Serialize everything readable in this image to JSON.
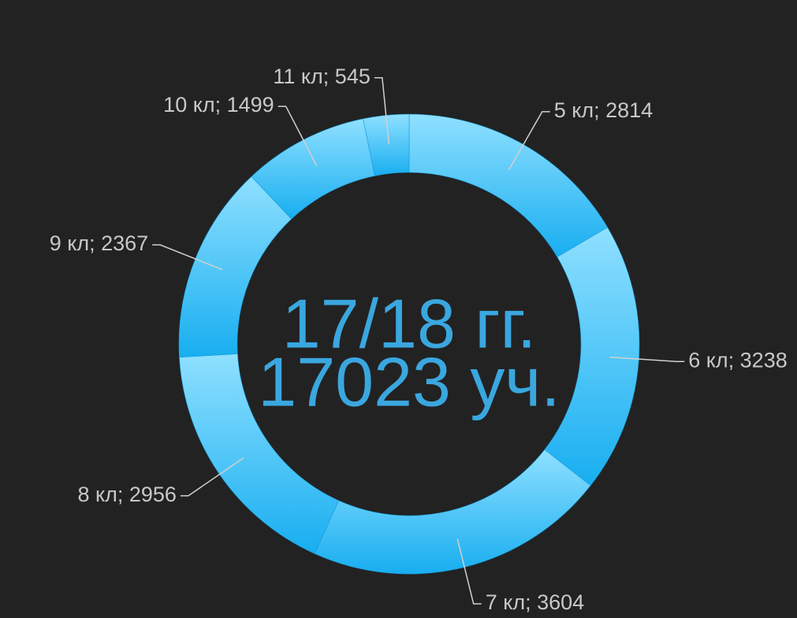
{
  "chart_data": {
    "type": "donut",
    "values": [
      2814,
      3238,
      3604,
      2956,
      2367,
      1499,
      545
    ],
    "value_labels": [
      "5 кл; 2814",
      "6 кл; 3238",
      "7 кл; 3604",
      "8 кл; 2956",
      "9 кл; 2367",
      "10 кл; 1499",
      "11 кл; 545"
    ],
    "center_text": [
      "17/18 гг.",
      "17023 уч."
    ],
    "color_top": "#8fe0ff",
    "color_bottom": "#18aef0"
  }
}
